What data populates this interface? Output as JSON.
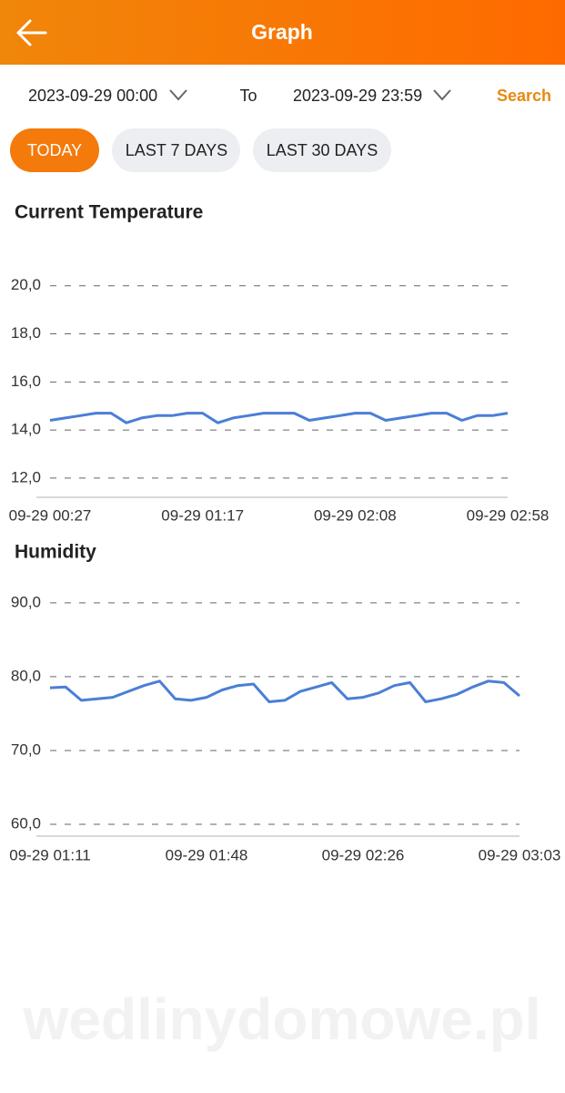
{
  "header": {
    "title": "Graph"
  },
  "filter": {
    "from": "2023-09-29 00:00",
    "to_label": "To",
    "to": "2023-09-29 23:59",
    "search": "Search",
    "tabs": [
      "TODAY",
      "LAST 7 DAYS",
      "LAST 30 DAYS"
    ]
  },
  "watermark": "wedlinydomowe.pl",
  "chart_data": [
    {
      "type": "line",
      "title": "Current Temperature",
      "color": "#4a7fd6",
      "grid": true,
      "categories": [
        "09-29 00:27",
        null,
        null,
        null,
        null,
        null,
        null,
        null,
        null,
        null,
        "09-29 01:17",
        null,
        null,
        null,
        null,
        null,
        null,
        null,
        null,
        null,
        "09-29 02:08",
        null,
        null,
        null,
        null,
        null,
        null,
        null,
        null,
        null,
        "09-29 02:58"
      ],
      "values": [
        14.4,
        14.5,
        14.6,
        14.7,
        14.7,
        14.3,
        14.5,
        14.6,
        14.6,
        14.7,
        14.7,
        14.3,
        14.5,
        14.6,
        14.7,
        14.7,
        14.7,
        14.4,
        14.5,
        14.6,
        14.7,
        14.7,
        14.4,
        14.5,
        14.6,
        14.7,
        14.7,
        14.4,
        14.6,
        14.6,
        14.7
      ],
      "ylim": [
        11.2,
        20.9
      ],
      "yticks": [
        {
          "value": 12,
          "label": "12,0"
        },
        {
          "value": 14,
          "label": "14,0"
        },
        {
          "value": 16,
          "label": "16,0"
        },
        {
          "value": 18,
          "label": "18,0"
        },
        {
          "value": 20,
          "label": "20,0"
        }
      ]
    },
    {
      "type": "line",
      "title": "Humidity",
      "color": "#4a7fd6",
      "grid": true,
      "categories": [
        "09-29 01:11",
        null,
        null,
        null,
        null,
        null,
        null,
        null,
        null,
        null,
        "09-29 01:48",
        null,
        null,
        null,
        null,
        null,
        null,
        null,
        null,
        null,
        "09-29 02:26",
        null,
        null,
        null,
        null,
        null,
        null,
        null,
        null,
        null,
        "09-29 03:03"
      ],
      "values": [
        78.5,
        78.6,
        76.8,
        77.0,
        77.2,
        78.0,
        78.8,
        79.4,
        77.0,
        76.8,
        77.2,
        78.2,
        78.8,
        79.0,
        76.6,
        76.8,
        78.0,
        78.6,
        79.2,
        77.0,
        77.2,
        77.8,
        78.8,
        79.2,
        76.6,
        77.0,
        77.6,
        78.6,
        79.4,
        79.2,
        77.4
      ],
      "ylim": [
        58.4,
        92.7
      ],
      "yticks": [
        {
          "value": 60,
          "label": "60,0"
        },
        {
          "value": 70,
          "label": "70,0"
        },
        {
          "value": 80,
          "label": "80,0"
        },
        {
          "value": 90,
          "label": "90,0"
        }
      ]
    }
  ]
}
